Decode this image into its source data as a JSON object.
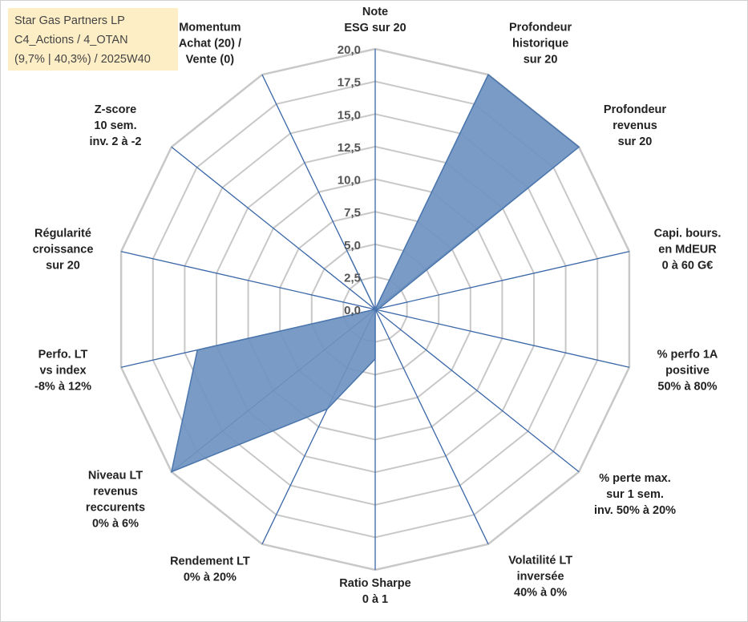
{
  "info_box": {
    "lines": [
      "Star Gas Partners LP",
      "C4_Actions / 4_OTAN",
      "(9,7% | 40,3%) / 2025W40"
    ],
    "background": "#fdeec6"
  },
  "chart_data": {
    "type": "radar",
    "rmax": 20,
    "tick_step": 2.5,
    "tick_labels": [
      "0,0",
      "2,5",
      "5,0",
      "7,5",
      "10,0",
      "12,5",
      "15,0",
      "17,5",
      "20,0"
    ],
    "axes": [
      {
        "label_lines": [
          "Note",
          "ESG sur 20"
        ],
        "value": 0
      },
      {
        "label_lines": [
          "Profondeur",
          "historique",
          "sur 20"
        ],
        "value": 20
      },
      {
        "label_lines": [
          "Profondeur",
          "revenus",
          "sur 20"
        ],
        "value": 20
      },
      {
        "label_lines": [
          "Capi. bours.",
          "en MdEUR",
          "0 à 60 G€"
        ],
        "value": 0.3
      },
      {
        "label_lines": [
          "% perfo 1A",
          "positive",
          "50% à 80%"
        ],
        "value": 0
      },
      {
        "label_lines": [
          "% perte max.",
          "sur 1 sem.",
          "inv. 50% à 20%"
        ],
        "value": 0
      },
      {
        "label_lines": [
          "Volatilité LT",
          "inversée",
          "40% à 0%"
        ],
        "value": 0
      },
      {
        "label_lines": [
          "Ratio Sharpe",
          "0 à 1"
        ],
        "value": 3.8
      },
      {
        "label_lines": [
          "Rendement LT",
          "0% à 20%"
        ],
        "value": 8.5
      },
      {
        "label_lines": [
          "Niveau LT",
          "revenus",
          "reccurents",
          "0% à 6%"
        ],
        "value": 20
      },
      {
        "label_lines": [
          "Perfo. LT",
          "vs index",
          "-8% à 12%"
        ],
        "value": 14
      },
      {
        "label_lines": [
          "Régularité",
          "croissance",
          "sur 20"
        ],
        "value": 0
      },
      {
        "label_lines": [
          "Z-score",
          "10 sem.",
          "inv. 2 à -2"
        ],
        "value": 0
      },
      {
        "label_lines": [
          "Momentum",
          "Achat (20) /",
          "Vente (0)"
        ],
        "value": 4.5
      }
    ],
    "colors": {
      "fill": "#6f93c0",
      "stroke": "#4a76ad",
      "axis": "#3a67a8",
      "grid": "#c8c8c8",
      "frame": "#d0d0d0"
    }
  }
}
